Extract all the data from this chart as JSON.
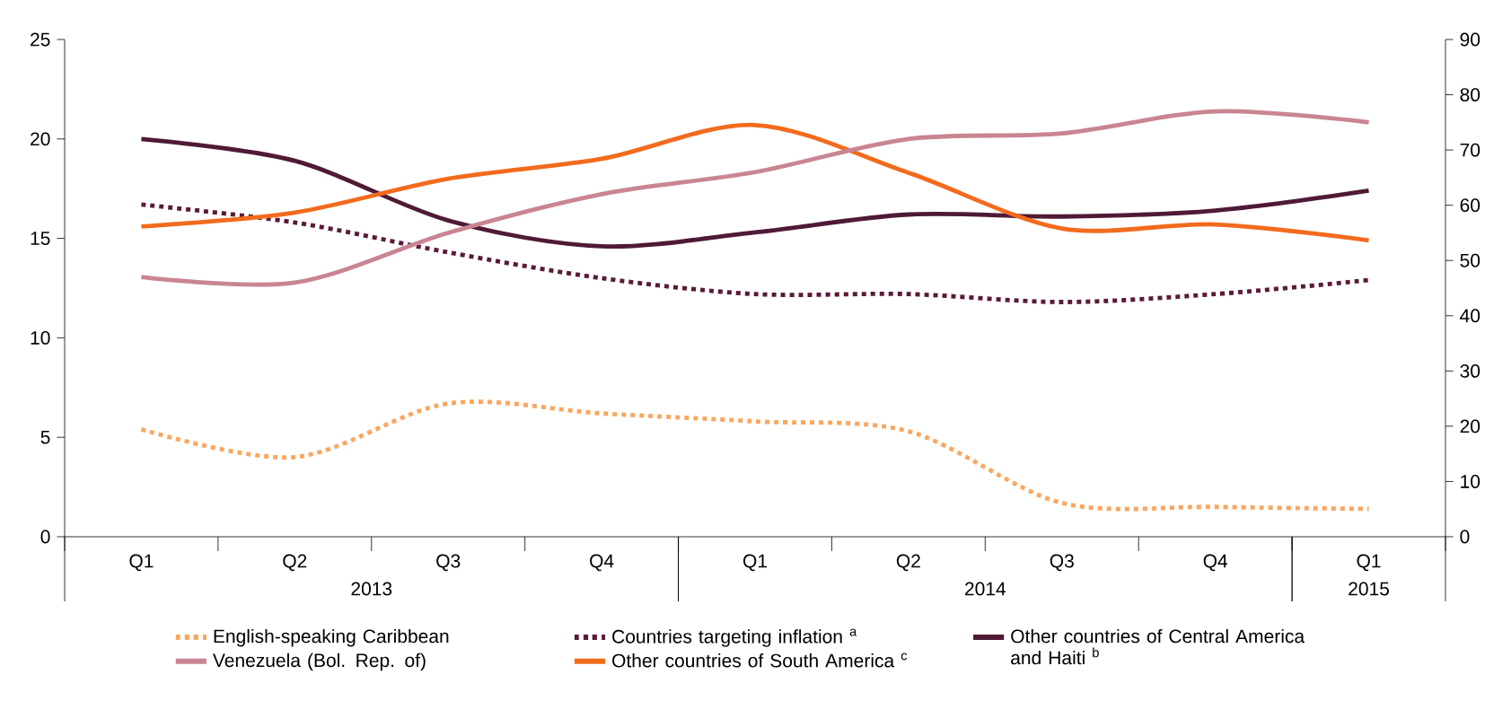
{
  "chart_data": {
    "type": "line",
    "categories": [
      "Q1",
      "Q2",
      "Q3",
      "Q4",
      "Q1",
      "Q2",
      "Q3",
      "Q4",
      "Q1"
    ],
    "annotations": [
      "2013",
      "2014",
      "2015"
    ],
    "ylim": [
      0,
      25
    ],
    "yticks": [
      0,
      5,
      10,
      15,
      20,
      25
    ],
    "y2lim": [
      0,
      90
    ],
    "y2ticks": [
      0,
      10,
      20,
      30,
      40,
      50,
      60,
      70,
      80,
      90
    ],
    "grid": false,
    "legend": "bottom",
    "marker": "none",
    "series": [
      {
        "name": "English-speaking Caribbean",
        "color": "#f9a75f",
        "line_style": "dotted",
        "values": [
          5.4,
          4.0,
          6.7,
          6.2,
          5.8,
          5.3,
          1.7,
          1.5,
          1.4
        ]
      },
      {
        "name": "Countries targeting inflation $^{a}$",
        "color": "#5a1a38",
        "line_style": "dotted",
        "values": [
          16.7,
          15.8,
          14.3,
          13.0,
          12.2,
          12.2,
          11.8,
          12.2,
          12.9
        ]
      },
      {
        "name": "Other countries of Central America and Haiti $^{b}$",
        "color": "#4f1a35",
        "line_style": "solid",
        "values": [
          20.0,
          18.9,
          15.9,
          14.6,
          15.3,
          16.2,
          16.1,
          16.4,
          17.4
        ]
      },
      {
        "name": "Venezuela (Bol. Rep. of)",
        "color": "#c98592",
        "line_style": "solid",
        "axis": "y2",
        "values": [
          47,
          46,
          55,
          62,
          66,
          72,
          73,
          77,
          75
        ]
      },
      {
        "name": "Other countries of South America $^{c}$",
        "color": "#f26b1d",
        "line_style": "solid",
        "values": [
          15.6,
          16.3,
          18.0,
          19.0,
          20.7,
          18.3,
          15.5,
          15.7,
          14.9
        ]
      }
    ]
  }
}
